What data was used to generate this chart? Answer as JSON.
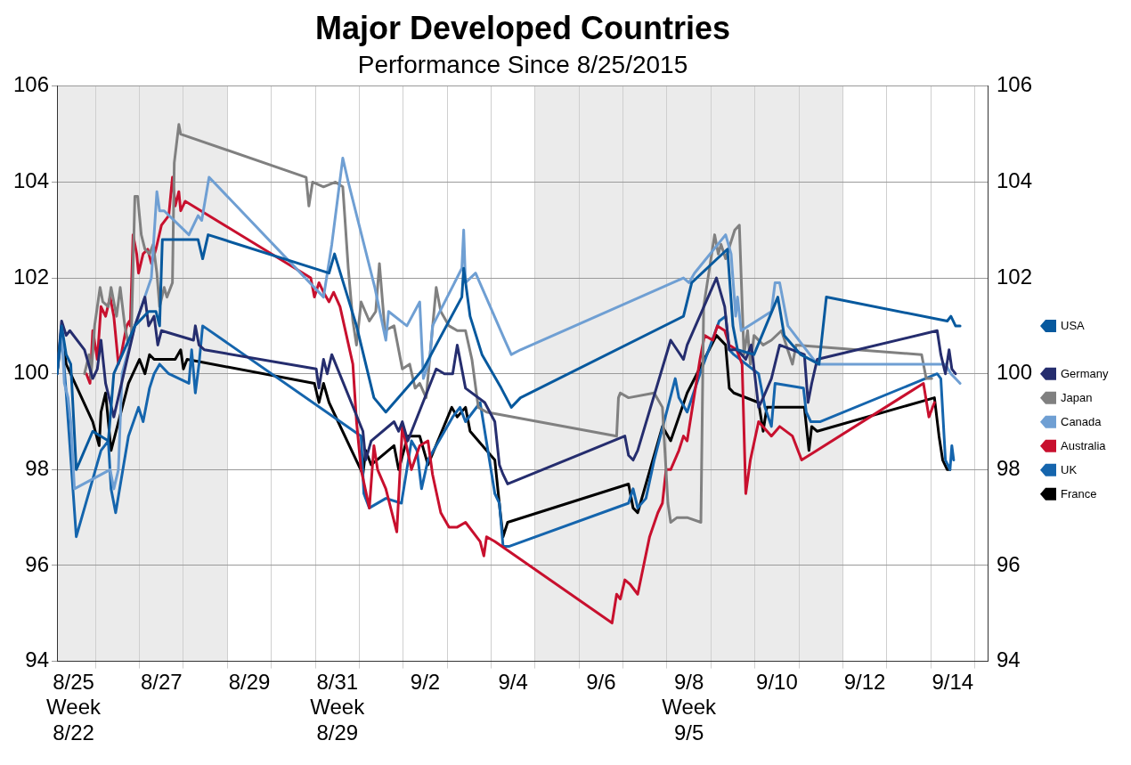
{
  "chart_data": {
    "type": "line",
    "title": "Major Developed Countries",
    "subtitle": "Performance Since 8/25/2015",
    "xlim": [
      "2015-08-25T03:00",
      "2015-09-15T07:30"
    ],
    "xticks": [
      {
        "value": "2015-08-25T12:00",
        "label": "8/25\nWeek\n8/22"
      },
      {
        "value": "2015-08-26",
        "label": null
      },
      {
        "value": "2015-08-27",
        "label": null
      },
      {
        "value": "2015-08-27T12:00",
        "label": "8/27"
      },
      {
        "value": "2015-08-28",
        "label": null
      },
      {
        "value": "2015-08-29",
        "label": null
      },
      {
        "value": "2015-08-29T12:00",
        "label": "8/29"
      },
      {
        "value": "2015-08-30",
        "label": null
      },
      {
        "value": "2015-08-31",
        "label": null
      },
      {
        "value": "2015-08-31T12:00",
        "label": "8/31\nWeek\n8/29"
      },
      {
        "value": "2015-09-01",
        "label": null
      },
      {
        "value": "2015-09-02",
        "label": null
      },
      {
        "value": "2015-09-02T12:00",
        "label": "9/2"
      },
      {
        "value": "2015-09-03",
        "label": null
      },
      {
        "value": "2015-09-04",
        "label": null
      },
      {
        "value": "2015-09-04T12:00",
        "label": "9/4"
      },
      {
        "value": "2015-09-05",
        "label": null
      },
      {
        "value": "2015-09-06",
        "label": null
      },
      {
        "value": "2015-09-06T12:00",
        "label": "9/6"
      },
      {
        "value": "2015-09-07",
        "label": null
      },
      {
        "value": "2015-09-08",
        "label": null
      },
      {
        "value": "2015-09-08T12:00",
        "label": "9/8\nWeek\n9/5"
      },
      {
        "value": "2015-09-09",
        "label": null
      },
      {
        "value": "2015-09-10",
        "label": null
      },
      {
        "value": "2015-09-10T12:00",
        "label": "9/10"
      },
      {
        "value": "2015-09-11",
        "label": null
      },
      {
        "value": "2015-09-12",
        "label": null
      },
      {
        "value": "2015-09-12T12:00",
        "label": "9/12"
      },
      {
        "value": "2015-09-13",
        "label": null
      },
      {
        "value": "2015-09-14",
        "label": null
      },
      {
        "value": "2015-09-14T12:00",
        "label": "9/14"
      },
      {
        "value": "2015-09-15",
        "label": null
      }
    ],
    "ylim": [
      94,
      106
    ],
    "yticks": [
      94,
      96,
      98,
      100,
      102,
      104,
      106
    ],
    "y2lim": [
      94,
      106
    ],
    "y2ticks": [
      94,
      96,
      98,
      100,
      102,
      104,
      106
    ],
    "grid": true,
    "legend": "right",
    "bands": [
      {
        "axis": "x",
        "from": "2015-08-25T03:00",
        "to": "2015-08-29",
        "color": "#ebebeb"
      },
      {
        "axis": "x",
        "from": "2015-09-05",
        "to": "2015-09-12",
        "color": "#ebebeb"
      }
    ],
    "series": [
      {
        "name": "USA",
        "color": "#07599e",
        "x": [
          "2015-08-25T03:00",
          "2015-08-25T05:30",
          "2015-08-25T08:00",
          "2015-08-25T10:30",
          "2015-08-25T13:30",
          "2015-08-25T22:30",
          "2015-08-26T07:00",
          "2015-08-26T10:00",
          "2015-08-26T21:30",
          "2015-08-27T05:00",
          "2015-08-27T09:00",
          "2015-08-27T11:00",
          "2015-08-27T12:30",
          "2015-08-28T08:00",
          "2015-08-28T10:30",
          "2015-08-28T13:30",
          "2015-08-31T07:30",
          "2015-08-31T10:30",
          "2015-08-31T14:30",
          "2015-08-31T22:30",
          "2015-09-01T08:00",
          "2015-09-01T14:30",
          "2015-09-02T11:00",
          "2015-09-03T08:00",
          "2015-09-03T09:00",
          "2015-09-03T12:30",
          "2015-09-03T19:00",
          "2015-09-04T05:30",
          "2015-09-04T11:00",
          "2015-09-04T16:00",
          "2015-09-08T09:00",
          "2015-09-08T13:30",
          "2015-09-09T09:00",
          "2015-09-09T12:00",
          "2015-09-09T14:30",
          "2015-09-09T23:30",
          "2015-09-10T12:30",
          "2015-09-10T16:00",
          "2015-09-11T01:00",
          "2015-09-11T11:00",
          "2015-09-11T15:00",
          "2015-09-14T09:00",
          "2015-09-14T11:00",
          "2015-09-14T13:30",
          "2015-09-14T16:00"
        ],
        "values": [
          100,
          101,
          100.4,
          100.2,
          98,
          98.8,
          98.6,
          100,
          101,
          101.3,
          101.3,
          101,
          102.8,
          102.8,
          102.4,
          102.9,
          102.1,
          102.5,
          102,
          101,
          99.5,
          99.2,
          100.1,
          101.6,
          102.2,
          101.2,
          100.4,
          99.7,
          99.3,
          99.5,
          101.2,
          101.9,
          102.6,
          101,
          100.5,
          100.4,
          101.6,
          100.8,
          100.4,
          100.2,
          101.6,
          101.1,
          101.2,
          101,
          101
        ]
      },
      {
        "name": "Germany",
        "color": "#252d6e",
        "x": [
          "2015-08-25T03:00",
          "2015-08-25T05:30",
          "2015-08-25T08:00",
          "2015-08-25T10:00",
          "2015-08-25T18:00",
          "2015-08-25T22:30",
          "2015-08-26T01:00",
          "2015-08-26T03:00",
          "2015-08-26T05:30",
          "2015-08-26T10:00",
          "2015-08-26T21:30",
          "2015-08-27T03:00",
          "2015-08-27T05:00",
          "2015-08-27T08:00",
          "2015-08-27T10:00",
          "2015-08-27T12:00",
          "2015-08-28T05:30",
          "2015-08-28T06:30",
          "2015-08-28T08:30",
          "2015-08-28T11:30",
          "2015-08-31T00:30",
          "2015-08-31T02:00",
          "2015-08-31T04:30",
          "2015-08-31T06:30",
          "2015-08-31T09:00",
          "2015-09-01T02:00",
          "2015-09-01T03:30",
          "2015-09-01T06:30",
          "2015-09-01T19:00",
          "2015-09-01T21:30",
          "2015-09-01T23:30",
          "2015-09-02T02:30",
          "2015-09-02T18:00",
          "2015-09-02T22:30",
          "2015-09-03T03:00",
          "2015-09-03T05:30",
          "2015-09-03T10:00",
          "2015-09-03T20:30",
          "2015-09-04T02:00",
          "2015-09-04T04:30",
          "2015-09-04T06:30",
          "2015-09-04T09:00",
          "2015-09-07T01:00",
          "2015-09-07T03:00",
          "2015-09-07T05:30",
          "2015-09-07T08:00",
          "2015-09-08T02:00",
          "2015-09-08T09:00",
          "2015-09-08T11:00",
          "2015-09-09T03:00",
          "2015-09-09T07:30",
          "2015-09-09T10:00",
          "2015-09-09T14:30",
          "2015-09-09T19:00",
          "2015-09-09T22:00",
          "2015-09-10T02:00",
          "2015-09-10T04:30",
          "2015-09-10T09:00",
          "2015-09-10T13:30",
          "2015-09-11T03:00",
          "2015-09-11T05:00",
          "2015-09-11T07:00",
          "2015-09-11T10:00",
          "2015-09-14T03:30",
          "2015-09-14T05:30",
          "2015-09-14T08:00",
          "2015-09-14T10:00",
          "2015-09-14T11:30",
          "2015-09-14T13:30"
        ],
        "values": [
          100,
          101.1,
          100.8,
          100.9,
          100.5,
          99.9,
          100.1,
          100.7,
          99.8,
          99.1,
          101,
          101.6,
          101,
          101.2,
          100.6,
          100.9,
          100.7,
          101,
          100.6,
          100.5,
          100.1,
          99.7,
          100.3,
          100,
          100.4,
          98.8,
          98.2,
          98.6,
          99,
          98.8,
          99,
          98.6,
          100.1,
          100,
          100,
          100.6,
          99.7,
          99.4,
          99,
          98.1,
          97.9,
          97.7,
          98.7,
          98.3,
          98.2,
          98.4,
          100.7,
          100.3,
          100.6,
          102,
          101.4,
          100.5,
          100.5,
          100.3,
          100.6,
          99.3,
          99.5,
          99.9,
          100.6,
          100.4,
          99.4,
          99.8,
          100.3,
          100.9,
          100.4,
          100,
          100.5,
          100.1,
          100
        ]
      },
      {
        "name": "Canada",
        "color": "#6f9fd3",
        "x": [
          "2015-08-25T03:00",
          "2015-08-25T05:30",
          "2015-08-25T07:00",
          "2015-08-25T09:00",
          "2015-08-25T10:30",
          "2015-08-25T12:30",
          "2015-08-26T08:00",
          "2015-08-26T10:00",
          "2015-08-26T12:30",
          "2015-08-26T14:30",
          "2015-08-26T21:30",
          "2015-08-27T06:30",
          "2015-08-27T09:30",
          "2015-08-27T11:00",
          "2015-08-27T13:30",
          "2015-08-28T03:00",
          "2015-08-28T08:00",
          "2015-08-28T10:00",
          "2015-08-28T14:00",
          "2015-08-31T04:30",
          "2015-08-31T09:00",
          "2015-08-31T12:00",
          "2015-08-31T15:00",
          "2015-08-31T18:00",
          "2015-09-01T08:30",
          "2015-09-01T14:30",
          "2015-09-01T16:00",
          "2015-09-02T02:00",
          "2015-09-02T09:00",
          "2015-09-02T11:00",
          "2015-09-02T14:30",
          "2015-09-02T16:00",
          "2015-09-03T08:00",
          "2015-09-03T09:00",
          "2015-09-03T10:00",
          "2015-09-03T15:30",
          "2015-09-04T07:30",
          "2015-09-04T11:00",
          "2015-09-04T16:00",
          "2015-09-08T09:00",
          "2015-09-08T12:00",
          "2015-09-08T15:00",
          "2015-09-09T08:00",
          "2015-09-09T11:00",
          "2015-09-09T13:30",
          "2015-09-09T14:30",
          "2015-09-09T16:30",
          "2015-09-10T09:00",
          "2015-09-10T11:00",
          "2015-09-10T13:30",
          "2015-09-10T18:00",
          "2015-09-11T10:00",
          "2015-09-14T08:00",
          "2015-09-14T11:00",
          "2015-09-14T13:30",
          "2015-09-14T16:00"
        ],
        "values": [
          100,
          101,
          99.8,
          99.5,
          99,
          97.6,
          98,
          97.6,
          98,
          100,
          101,
          102,
          103.8,
          103.4,
          103.4,
          102.9,
          103.3,
          103.2,
          104.1,
          101.6,
          102.7,
          103.6,
          104.5,
          104,
          101.8,
          100.7,
          101.3,
          101,
          101.5,
          99.9,
          100.3,
          101,
          102.2,
          103,
          101.9,
          102.1,
          100.7,
          100.4,
          100.5,
          102,
          101.9,
          102.1,
          102.9,
          102.5,
          101.2,
          101.6,
          100.9,
          101.3,
          101.9,
          101.9,
          101,
          100.2,
          100.2,
          100,
          99.9,
          99.8
        ]
      },
      {
        "name": "Japan",
        "color": "#808080",
        "x": [
          "2015-08-25T18:00",
          "2015-08-25T20:30",
          "2015-08-25T21:30",
          "2015-08-25T23:30",
          "2015-08-26T02:30",
          "2015-08-26T04:00",
          "2015-08-26T07:00",
          "2015-08-26T08:30",
          "2015-08-26T11:30",
          "2015-08-26T13:30",
          "2015-08-26T16:00",
          "2015-08-26T18:00",
          "2015-08-26T19:30",
          "2015-08-26T21:30",
          "2015-08-26T23:00",
          "2015-08-27T01:00",
          "2015-08-27T03:00",
          "2015-08-27T05:30",
          "2015-08-27T07:30",
          "2015-08-27T09:30",
          "2015-08-27T11:00",
          "2015-08-27T13:30",
          "2015-08-27T15:00",
          "2015-08-27T18:00",
          "2015-08-27T19:00",
          "2015-08-27T21:30",
          "2015-08-27T22:30",
          "2015-08-30T19:00",
          "2015-08-30T20:30",
          "2015-08-30T22:30",
          "2015-08-31T04:30",
          "2015-08-31T11:00",
          "2015-08-31T15:00",
          "2015-08-31T18:00",
          "2015-08-31T20:30",
          "2015-08-31T22:30",
          "2015-09-01T01:00",
          "2015-09-01T05:30",
          "2015-09-01T09:00",
          "2015-09-01T11:00",
          "2015-09-01T14:00",
          "2015-09-01T19:00",
          "2015-09-01T23:30",
          "2015-09-02T03:30",
          "2015-09-02T06:30",
          "2015-09-02T09:00",
          "2015-09-02T12:30",
          "2015-09-02T18:00",
          "2015-09-02T20:30",
          "2015-09-03T01:00",
          "2015-09-03T05:30",
          "2015-09-03T10:00",
          "2015-09-03T13:30",
          "2015-09-03T17:00",
          "2015-09-03T21:30",
          "2015-09-06T20:30",
          "2015-09-06T21:30",
          "2015-09-06T22:30",
          "2015-09-07T03:00",
          "2015-09-07T17:00",
          "2015-09-07T21:30",
          "2015-09-08T00:30",
          "2015-09-08T02:00",
          "2015-09-08T05:30",
          "2015-09-08T11:00",
          "2015-09-08T18:30",
          "2015-09-08T20:00",
          "2015-09-09T02:00",
          "2015-09-09T04:00",
          "2015-09-09T05:30",
          "2015-09-09T08:00",
          "2015-09-09T13:00",
          "2015-09-09T15:30",
          "2015-09-09T18:00",
          "2015-09-09T20:00",
          "2015-09-09T21:30",
          "2015-09-09T23:30",
          "2015-09-10T04:30",
          "2015-09-10T09:00",
          "2015-09-10T14:30",
          "2015-09-10T20:30",
          "2015-09-10T22:30",
          "2015-09-13T19:00",
          "2015-09-13T21:30",
          "2015-09-14T00:30"
        ],
        "values": [
          100,
          100.4,
          99.9,
          101,
          101.8,
          101.5,
          101.4,
          101.8,
          101.2,
          101.8,
          101,
          100.6,
          100.7,
          103.7,
          103.7,
          102.9,
          102.6,
          102.5,
          102.7,
          102.1,
          101.4,
          101.8,
          101.6,
          101.9,
          104.4,
          105.2,
          105,
          104.1,
          103.5,
          104,
          103.9,
          104,
          103.9,
          102.2,
          101.1,
          100.6,
          101.5,
          101.1,
          101.3,
          102.3,
          100.9,
          101,
          100.1,
          100.2,
          99.7,
          99.8,
          99.5,
          101.8,
          101.3,
          101,
          100.9,
          100.9,
          100.3,
          99.3,
          99.2,
          98.7,
          99.5,
          99.6,
          99.5,
          99.6,
          99.3,
          97.3,
          96.9,
          97,
          97,
          96.9,
          101.4,
          102.9,
          102.5,
          102.7,
          102.4,
          103,
          103.1,
          100.4,
          100.9,
          100.2,
          100.8,
          100.6,
          100.7,
          100.9,
          100.2,
          100.6,
          100.4,
          99.9,
          99.9
        ]
      },
      {
        "name": "Australia",
        "color": "#c8102e",
        "x": [
          "2015-08-25T19:00",
          "2015-08-25T21:00",
          "2015-08-25T22:30",
          "2015-08-26T01:00",
          "2015-08-26T03:00",
          "2015-08-26T05:30",
          "2015-08-26T08:00",
          "2015-08-26T10:00",
          "2015-08-26T12:30",
          "2015-08-26T14:00",
          "2015-08-26T17:00",
          "2015-08-26T18:30",
          "2015-08-26T19:00",
          "2015-08-26T20:30",
          "2015-08-26T22:30",
          "2015-08-26T23:30",
          "2015-08-27T02:00",
          "2015-08-27T04:30",
          "2015-08-27T06:30",
          "2015-08-27T09:00",
          "2015-08-27T12:00",
          "2015-08-27T16:00",
          "2015-08-27T18:00",
          "2015-08-27T19:30",
          "2015-08-27T21:30",
          "2015-08-27T22:30",
          "2015-08-28T01:00",
          "2015-08-30T21:30",
          "2015-08-30T23:30",
          "2015-08-31T02:00",
          "2015-08-31T04:30",
          "2015-08-31T07:30",
          "2015-08-31T10:00",
          "2015-08-31T13:30",
          "2015-08-31T20:30",
          "2015-08-31T22:30",
          "2015-09-01T01:00",
          "2015-09-01T05:30",
          "2015-09-01T08:00",
          "2015-09-01T10:00",
          "2015-09-01T14:30",
          "2015-09-01T20:30",
          "2015-09-01T23:30",
          "2015-09-02T04:30",
          "2015-09-02T09:00",
          "2015-09-02T13:30",
          "2015-09-02T16:00",
          "2015-09-02T20:30",
          "2015-09-03T01:00",
          "2015-09-03T05:30",
          "2015-09-03T10:00",
          "2015-09-03T18:00",
          "2015-09-03T20:00",
          "2015-09-03T21:30",
          "2015-09-04T02:00",
          "2015-09-06T18:00",
          "2015-09-06T20:30",
          "2015-09-06T22:30",
          "2015-09-07T01:00",
          "2015-09-07T04:00",
          "2015-09-07T08:00",
          "2015-09-07T14:30",
          "2015-09-07T19:00",
          "2015-09-07T21:30",
          "2015-09-07T23:30",
          "2015-09-08T02:00",
          "2015-09-08T06:30",
          "2015-09-08T09:00",
          "2015-09-08T11:00",
          "2015-09-08T18:00",
          "2015-09-08T20:30",
          "2015-09-09T01:00",
          "2015-09-09T03:30",
          "2015-09-09T07:30",
          "2015-09-09T10:00",
          "2015-09-09T14:00",
          "2015-09-09T17:00",
          "2015-09-09T19:00",
          "2015-09-09T21:30",
          "2015-09-10T02:00",
          "2015-09-10T09:00",
          "2015-09-10T13:30",
          "2015-09-10T20:30",
          "2015-09-11T01:30",
          "2015-09-13T20:00",
          "2015-09-13T23:00",
          "2015-09-14T02:00"
        ],
        "values": [
          100,
          99.8,
          100.9,
          100.3,
          101.4,
          101.2,
          101.6,
          101.2,
          100.2,
          100.4,
          101,
          101.1,
          101,
          102.9,
          102.5,
          102.1,
          102.5,
          102.6,
          102.3,
          102.6,
          103.1,
          103.3,
          104.1,
          103.5,
          103.8,
          103.4,
          103.6,
          102,
          101.6,
          101.9,
          101.7,
          101.5,
          101.7,
          101.4,
          100.2,
          99,
          98,
          97.2,
          98.5,
          98,
          97.6,
          96.7,
          98.9,
          98,
          98.5,
          98.6,
          97.9,
          97.1,
          96.8,
          96.8,
          96.9,
          96.5,
          96.2,
          96.6,
          96.5,
          94.8,
          95.4,
          95.3,
          95.7,
          95.6,
          95.4,
          96.6,
          97.1,
          97.3,
          98,
          98,
          98.4,
          98.7,
          98.6,
          100.3,
          100.8,
          100.7,
          101,
          100.9,
          100.6,
          100.5,
          100.2,
          97.5,
          98.2,
          99,
          98.7,
          98.9,
          98.7,
          98.2,
          99.8,
          99.1,
          99.4
        ]
      },
      {
        "name": "UK",
        "color": "#1565ad",
        "x": [
          "2015-08-25T03:00",
          "2015-08-25T05:30",
          "2015-08-25T08:00",
          "2015-08-25T13:30",
          "2015-08-26T03:00",
          "2015-08-26T07:00",
          "2015-08-26T08:30",
          "2015-08-26T11:00",
          "2015-08-26T18:00",
          "2015-08-26T23:30",
          "2015-08-27T02:00",
          "2015-08-27T05:30",
          "2015-08-27T08:00",
          "2015-08-27T11:00",
          "2015-08-27T16:00",
          "2015-08-28T03:00",
          "2015-08-28T04:30",
          "2015-08-28T06:30",
          "2015-08-28T08:30",
          "2015-08-28T10:30",
          "2015-09-01T01:00",
          "2015-09-01T02:30",
          "2015-09-01T05:30",
          "2015-09-01T14:30",
          "2015-09-01T23:00",
          "2015-09-02T04:30",
          "2015-09-02T07:30",
          "2015-09-02T10:00",
          "2015-09-02T13:30",
          "2015-09-03T03:00",
          "2015-09-03T07:00",
          "2015-09-03T10:00",
          "2015-09-03T18:00",
          "2015-09-04T02:00",
          "2015-09-04T04:30",
          "2015-09-04T06:30",
          "2015-09-04T10:00",
          "2015-09-07T03:00",
          "2015-09-07T05:30",
          "2015-09-07T08:00",
          "2015-09-07T12:30",
          "2015-09-07T17:00",
          "2015-09-08T04:30",
          "2015-09-08T06:30",
          "2015-09-08T11:00",
          "2015-09-08T18:00",
          "2015-09-09T04:30",
          "2015-09-09T08:00",
          "2015-09-09T10:00",
          "2015-09-09T12:30",
          "2015-09-10T02:00",
          "2015-09-10T05:30",
          "2015-09-10T09:00",
          "2015-09-10T11:00",
          "2015-09-11T02:30",
          "2015-09-11T04:00",
          "2015-09-11T06:30",
          "2015-09-11T11:30",
          "2015-09-14T03:30",
          "2015-09-14T05:30",
          "2015-09-14T08:00",
          "2015-09-14T10:30",
          "2015-09-14T11:30",
          "2015-09-14T12:30"
        ],
        "values": [
          100,
          100.8,
          99.6,
          96.6,
          98.4,
          98.6,
          97.6,
          97.1,
          98.7,
          99.3,
          99,
          99.7,
          100,
          100.2,
          100,
          99.8,
          100.5,
          99.6,
          100.2,
          101,
          98.7,
          97.5,
          97.2,
          97.4,
          97.3,
          98.6,
          98.4,
          97.6,
          98.2,
          99.1,
          99.3,
          99,
          99.4,
          97.5,
          97.3,
          96.4,
          96.4,
          97.3,
          97.6,
          97.2,
          97.4,
          98.2,
          99.9,
          99.5,
          99.2,
          100,
          101.1,
          101.2,
          100.5,
          100.4,
          100,
          99.3,
          98.9,
          99.8,
          99.7,
          99.2,
          99,
          99,
          100,
          99.9,
          98.2,
          98,
          98.5,
          98.2
        ]
      },
      {
        "name": "France",
        "color": "#000000",
        "x": [
          "2015-08-25T03:00",
          "2015-08-25T05:30",
          "2015-08-25T08:00",
          "2015-08-25T22:30",
          "2015-08-26T02:00",
          "2015-08-26T03:00",
          "2015-08-26T05:30",
          "2015-08-26T08:30",
          "2015-08-26T18:00",
          "2015-08-27T00:00",
          "2015-08-27T03:00",
          "2015-08-27T05:30",
          "2015-08-27T08:00",
          "2015-08-27T19:30",
          "2015-08-27T22:30",
          "2015-08-28T00:00",
          "2015-08-28T02:00",
          "2015-08-30T23:30",
          "2015-08-31T02:00",
          "2015-08-31T04:30",
          "2015-08-31T07:30",
          "2015-09-01T02:00",
          "2015-09-01T03:30",
          "2015-09-01T06:30",
          "2015-09-01T19:00",
          "2015-09-01T21:30",
          "2015-09-02T02:30",
          "2015-09-02T09:00",
          "2015-09-02T13:30",
          "2015-09-03T02:30",
          "2015-09-03T05:30",
          "2015-09-03T10:00",
          "2015-09-03T12:30",
          "2015-09-04T02:00",
          "2015-09-04T05:00",
          "2015-09-04T06:30",
          "2015-09-04T09:00",
          "2015-09-07T03:00",
          "2015-09-07T05:30",
          "2015-09-07T08:00",
          "2015-09-07T21:30",
          "2015-09-08T02:00",
          "2015-09-08T11:00",
          "2015-09-09T03:00",
          "2015-09-09T08:00",
          "2015-09-09T10:00",
          "2015-09-09T12:30",
          "2015-09-10T02:00",
          "2015-09-10T04:30",
          "2015-09-10T06:30",
          "2015-09-11T03:00",
          "2015-09-11T05:30",
          "2015-09-11T07:00",
          "2015-09-11T10:00",
          "2015-09-14T02:00",
          "2015-09-14T04:30",
          "2015-09-14T06:30",
          "2015-09-14T09:00",
          "2015-09-14T10:30"
        ],
        "values": [
          100,
          100.9,
          100.2,
          99,
          98.5,
          99.2,
          99.6,
          98.4,
          99.8,
          100.3,
          100,
          100.4,
          100.3,
          100.3,
          100.5,
          100.1,
          100.3,
          99.8,
          99.4,
          99.8,
          99.4,
          97.9,
          98.4,
          98.1,
          98.5,
          98,
          98.7,
          98.7,
          98.1,
          99.3,
          99.1,
          99.3,
          98.8,
          98.2,
          97.1,
          96.6,
          96.9,
          97.7,
          97.2,
          97.1,
          98.9,
          98.6,
          99.6,
          100.8,
          100.6,
          99.7,
          99.6,
          99.4,
          98.8,
          99.3,
          99.3,
          98.4,
          98.9,
          98.8,
          99.5,
          98.7,
          98.2,
          98,
          98
        ]
      }
    ]
  }
}
